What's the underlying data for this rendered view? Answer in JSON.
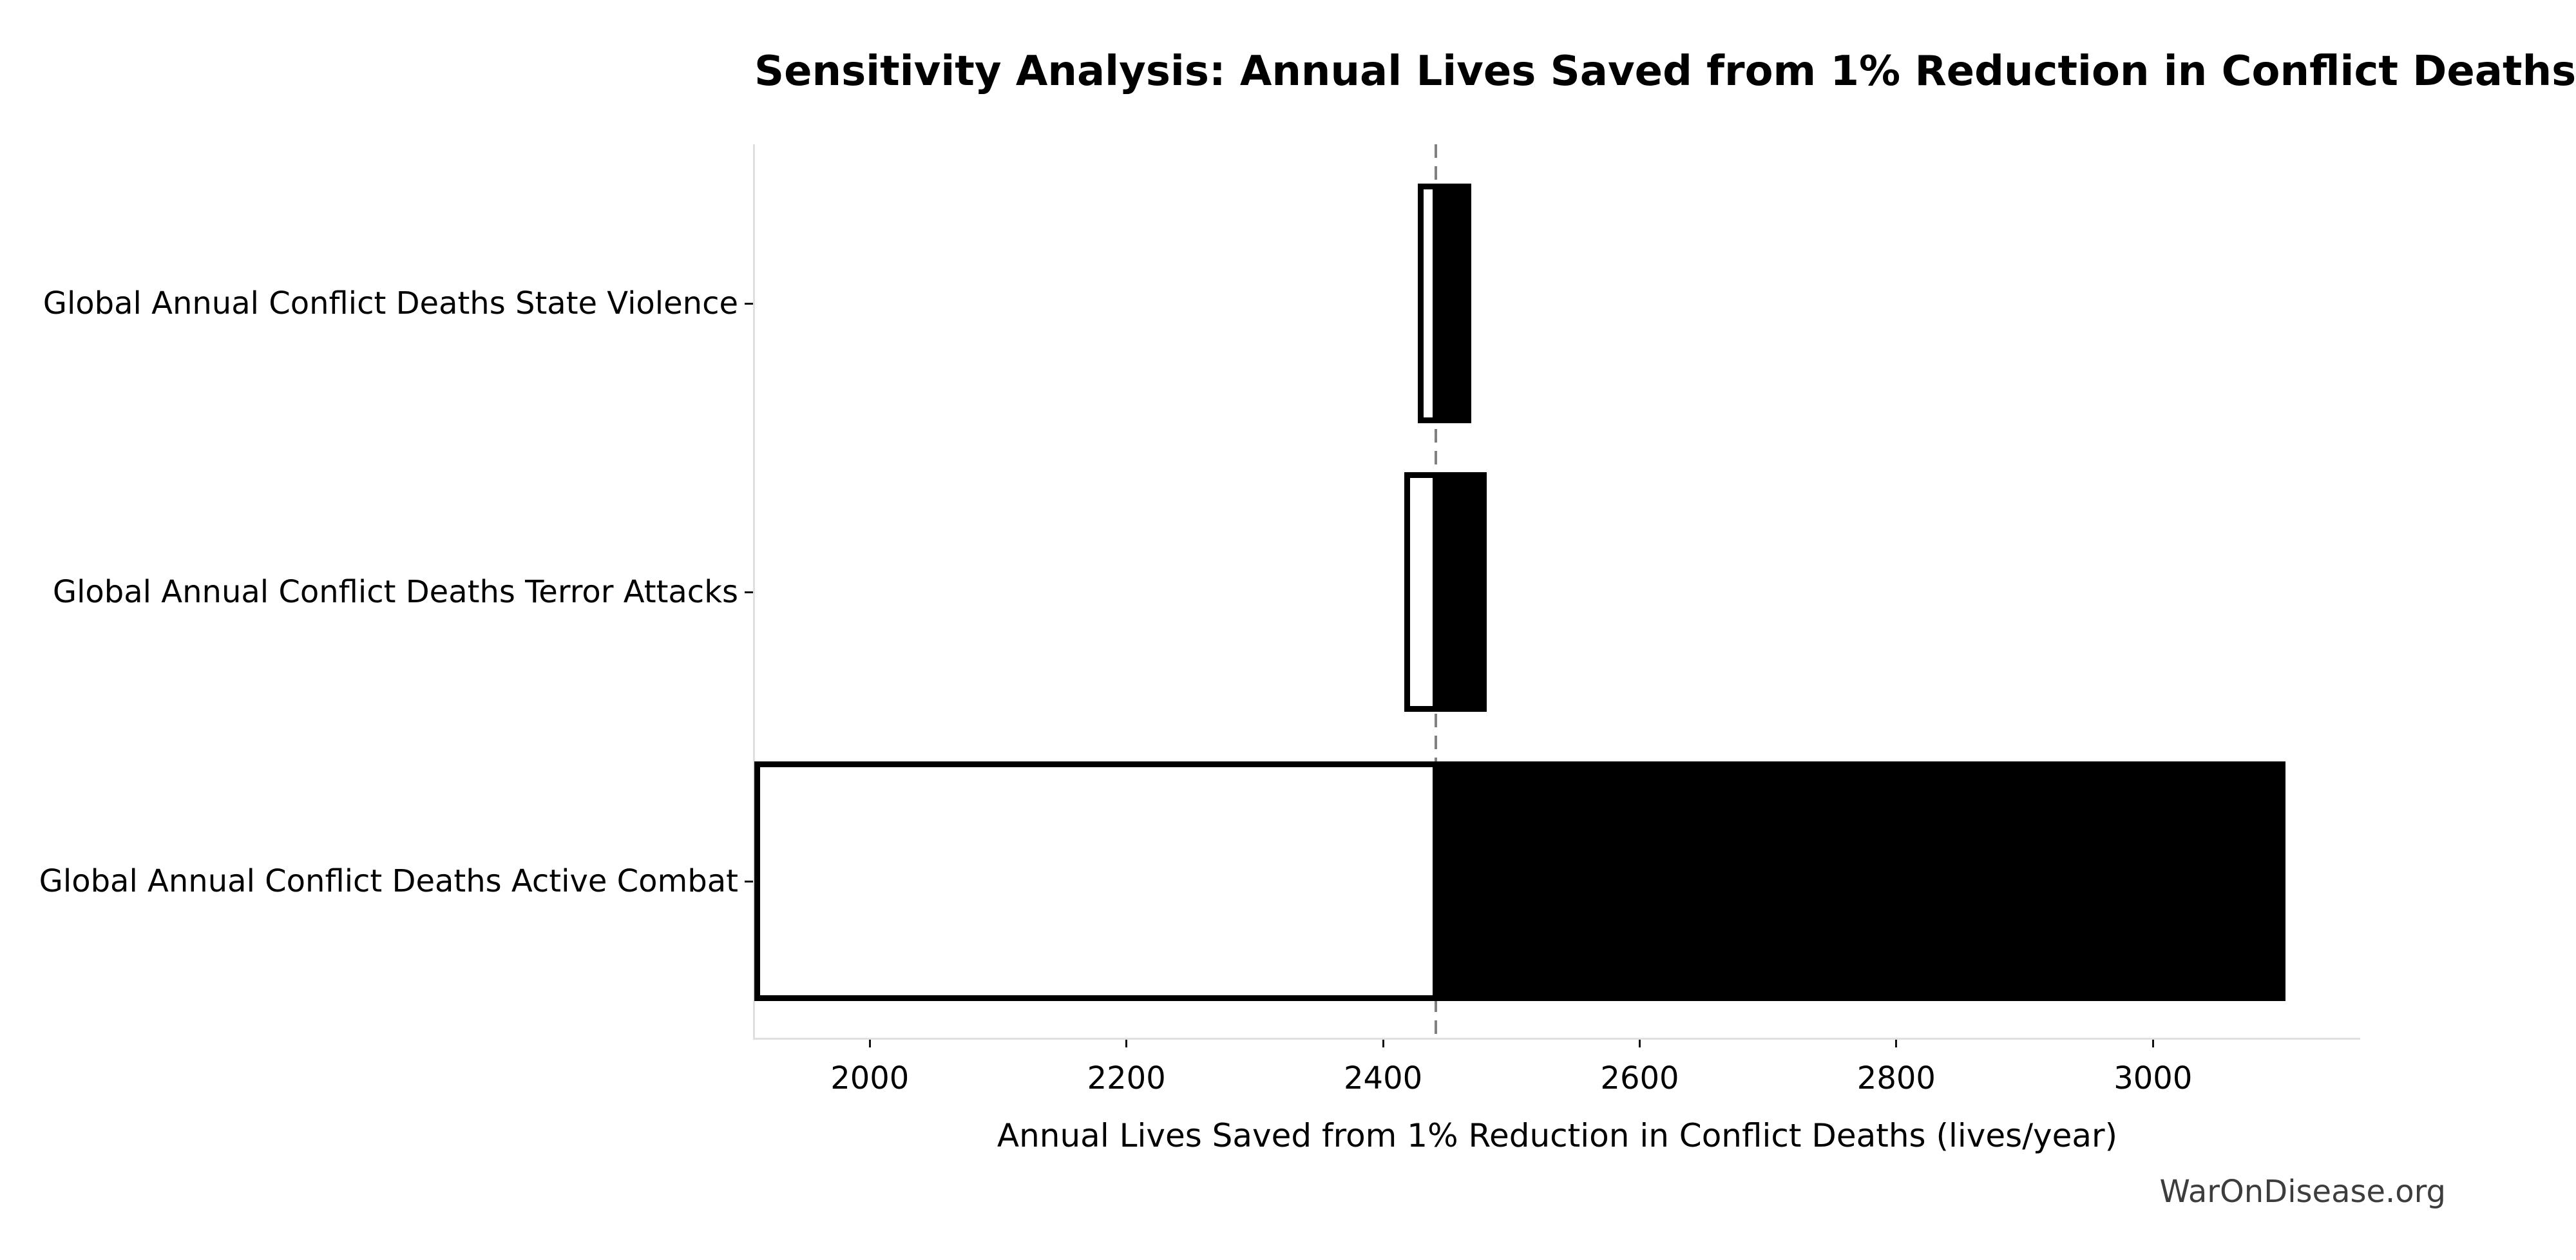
{
  "title": "Sensitivity Analysis: Annual Lives Saved from 1% Reduction in Conflict Deaths",
  "watermark": "WarOnDisease.org",
  "chart_data": {
    "type": "bar",
    "subtype": "tornado-sensitivity",
    "orientation": "horizontal",
    "title": "Sensitivity Analysis: Annual Lives Saved from 1% Reduction in Conflict Deaths",
    "xlabel": "Annual Lives Saved from 1% Reduction in Conflict Deaths (lives/year)",
    "ylabel": "",
    "baseline_value": 2441,
    "xlim": [
      1910,
      3161.5
    ],
    "xticks": [
      2000,
      2200,
      2400,
      2600,
      2800,
      3000
    ],
    "grid": false,
    "legend": false,
    "rows": [
      {
        "label": "Global Annual Conflict Deaths State Violence",
        "low": 2429.5,
        "high": 2466.5,
        "low_clipped_at_axis": false
      },
      {
        "label": "Global Annual Conflict Deaths Terror Attacks",
        "low": 2419,
        "high": 2478.5,
        "low_clipped_at_axis": false
      },
      {
        "label": "Global Annual Conflict Deaths Active Combat",
        "low": 1910,
        "high": 3101,
        "low_clipped_at_axis": true
      }
    ],
    "colors": {
      "low_bar_fill": "#ffffff",
      "high_bar_fill": "#000000",
      "bar_edge": "#000000",
      "baseline_line": "#808080",
      "spine": "#e0e0e0",
      "tick_mark": "#111111",
      "text": "#000000",
      "watermark_text": "#3d3d3d"
    }
  }
}
